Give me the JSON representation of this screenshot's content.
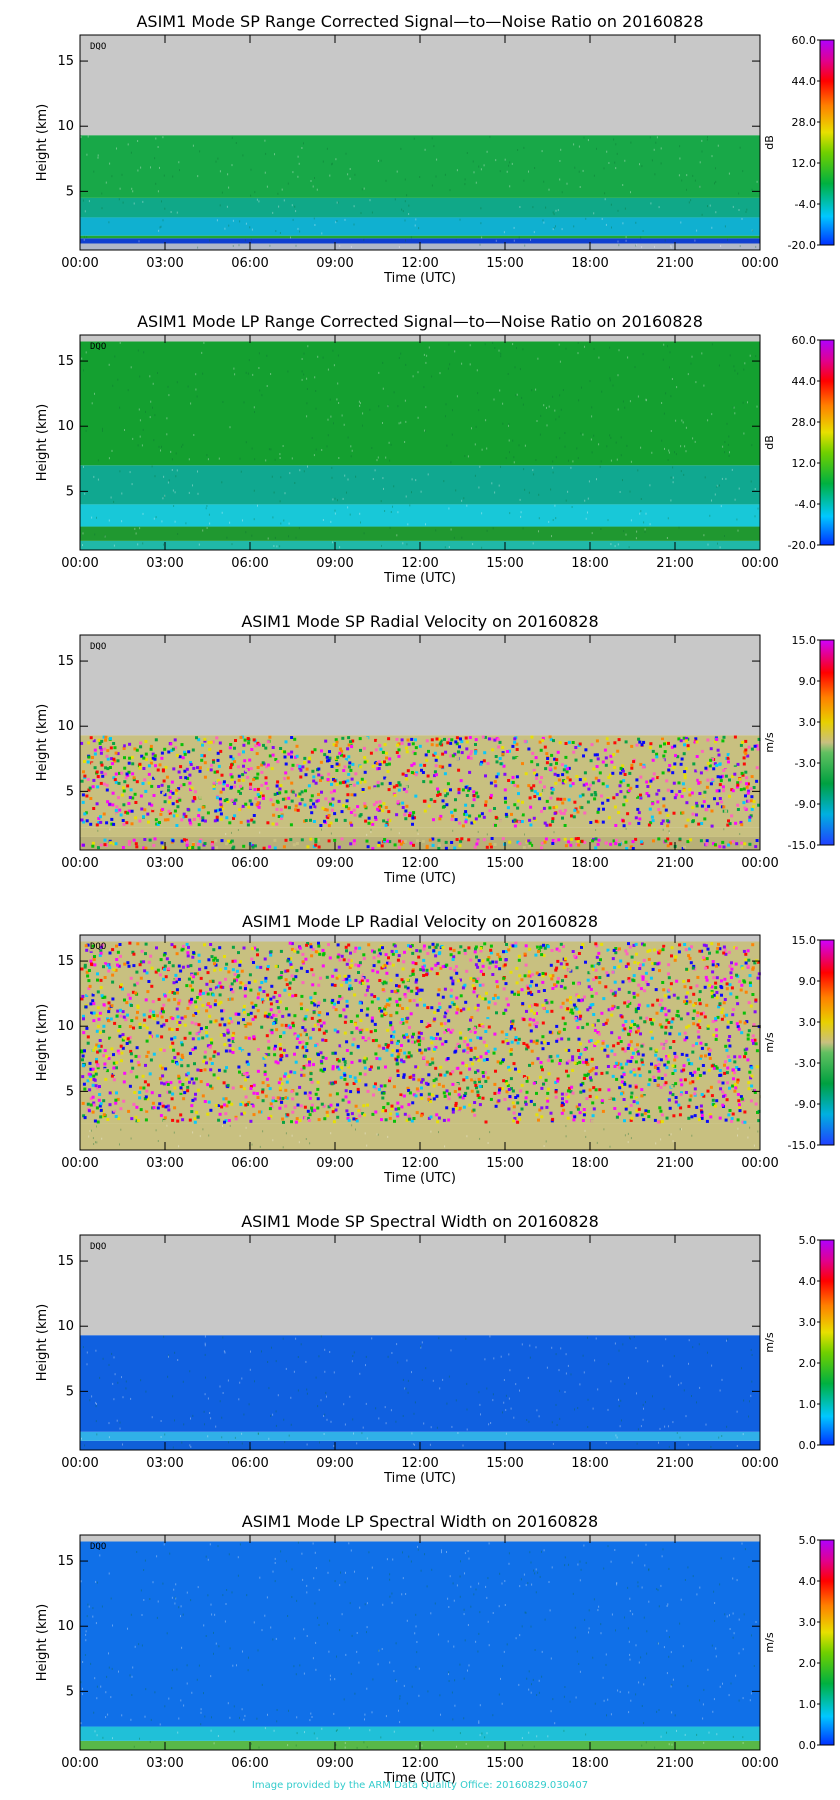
{
  "credit": "Image provided by the ARM Data Quality Office: 20160829.030407",
  "chart_data": [
    {
      "type": "heatmap",
      "title": "ASIM1 Mode SP Range Corrected Signal—to—Noise Ratio on 20160828",
      "xlabel": "Time (UTC)",
      "ylabel": "Height (km)",
      "xticks": [
        "00:00",
        "03:00",
        "06:00",
        "09:00",
        "12:00",
        "15:00",
        "18:00",
        "21:00",
        "00:00"
      ],
      "yticks": [
        5,
        10,
        15
      ],
      "ylim": [
        0.5,
        17
      ],
      "tag": "DQO",
      "no_data_above_km": 9.3,
      "colorbar": {
        "label": "dB",
        "ticks": [
          "60.0",
          "44.0",
          "28.0",
          "12.0",
          "-4.0",
          "-20.0"
        ],
        "min": -20,
        "max": 60
      },
      "colors": {
        "no_data": "#c8c8c8"
      },
      "bands": [
        {
          "from_km": 0.5,
          "to_km": 1.0,
          "color": "#b0b8c8"
        },
        {
          "from_km": 1.0,
          "to_km": 1.4,
          "color": "#1040d0"
        },
        {
          "from_km": 1.4,
          "to_km": 1.6,
          "color": "#20a830"
        },
        {
          "from_km": 1.6,
          "to_km": 3.0,
          "color": "#10b0d0"
        },
        {
          "from_km": 3.0,
          "to_km": 4.5,
          "color": "#10a888"
        },
        {
          "from_km": 4.5,
          "to_km": 9.3,
          "color": "#18a848"
        }
      ]
    },
    {
      "type": "heatmap",
      "title": "ASIM1 Mode LP Range Corrected Signal—to—Noise Ratio on 20160828",
      "xlabel": "Time (UTC)",
      "ylabel": "Height (km)",
      "xticks": [
        "00:00",
        "03:00",
        "06:00",
        "09:00",
        "12:00",
        "15:00",
        "18:00",
        "21:00",
        "00:00"
      ],
      "yticks": [
        5,
        10,
        15
      ],
      "ylim": [
        0.5,
        17
      ],
      "tag": "DQO",
      "no_data_above_km": 16.5,
      "colorbar": {
        "label": "dB",
        "ticks": [
          "60.0",
          "44.0",
          "28.0",
          "12.0",
          "-4.0",
          "-20.0"
        ],
        "min": -20,
        "max": 60
      },
      "colors": {
        "no_data": "#c8c8c8"
      },
      "bands": [
        {
          "from_km": 0.5,
          "to_km": 1.2,
          "color": "#20b8a8"
        },
        {
          "from_km": 1.2,
          "to_km": 2.3,
          "color": "#209830"
        },
        {
          "from_km": 2.3,
          "to_km": 4.0,
          "color": "#18c8d8"
        },
        {
          "from_km": 4.0,
          "to_km": 7.0,
          "color": "#10a890"
        },
        {
          "from_km": 7.0,
          "to_km": 16.5,
          "color": "#14a030"
        }
      ]
    },
    {
      "type": "heatmap",
      "title": "ASIM1 Mode SP Radial Velocity  on 20160828",
      "xlabel": "Time (UTC)",
      "ylabel": "Height (km)",
      "xticks": [
        "00:00",
        "03:00",
        "06:00",
        "09:00",
        "12:00",
        "15:00",
        "18:00",
        "21:00",
        "00:00"
      ],
      "yticks": [
        5,
        10,
        15
      ],
      "ylim": [
        0.5,
        17
      ],
      "tag": "DQO",
      "no_data_above_km": 9.3,
      "colorbar": {
        "label": "m/s",
        "ticks": [
          "15.0",
          "9.0",
          "3.0",
          "-3.0",
          "-9.0",
          "-15.0"
        ],
        "min": -15,
        "max": 15
      },
      "colors": {
        "no_data": "#c8c8c8"
      },
      "bands": [
        {
          "from_km": 0.5,
          "to_km": 1.5,
          "color": "#b8b078",
          "noise": true
        },
        {
          "from_km": 1.5,
          "to_km": 2.2,
          "color": "#c8c080"
        },
        {
          "from_km": 2.2,
          "to_km": 9.3,
          "color": "#c8c080",
          "noise": true
        }
      ]
    },
    {
      "type": "heatmap",
      "title": "ASIM1 Mode LP Radial Velocity  on 20160828",
      "xlabel": "Time (UTC)",
      "ylabel": "Height (km)",
      "xticks": [
        "00:00",
        "03:00",
        "06:00",
        "09:00",
        "12:00",
        "15:00",
        "18:00",
        "21:00",
        "00:00"
      ],
      "yticks": [
        5,
        10,
        15
      ],
      "ylim": [
        0.5,
        17
      ],
      "tag": "DQO",
      "no_data_above_km": 16.5,
      "colorbar": {
        "label": "m/s",
        "ticks": [
          "15.0",
          "9.0",
          "3.0",
          "-3.0",
          "-9.0",
          "-15.0"
        ],
        "min": -15,
        "max": 15
      },
      "colors": {
        "no_data": "#c8c8c8"
      },
      "bands": [
        {
          "from_km": 0.5,
          "to_km": 2.5,
          "color": "#c8c080"
        },
        {
          "from_km": 2.5,
          "to_km": 16.5,
          "color": "#c8c080",
          "noise": true
        }
      ]
    },
    {
      "type": "heatmap",
      "title": "ASIM1 Mode SP Spectral Width  on 20160828",
      "xlabel": "Time (UTC)",
      "ylabel": "Height (km)",
      "xticks": [
        "00:00",
        "03:00",
        "06:00",
        "09:00",
        "12:00",
        "15:00",
        "18:00",
        "21:00",
        "00:00"
      ],
      "yticks": [
        5,
        10,
        15
      ],
      "ylim": [
        0.5,
        17
      ],
      "tag": "DQO",
      "no_data_above_km": 9.3,
      "colorbar": {
        "label": "m/s",
        "ticks": [
          "5.0",
          "4.0",
          "3.0",
          "2.0",
          "1.0",
          "0.0"
        ],
        "min": 0,
        "max": 5
      },
      "colors": {
        "no_data": "#c8c8c8"
      },
      "bands": [
        {
          "from_km": 0.5,
          "to_km": 1.2,
          "color": "#1060d8"
        },
        {
          "from_km": 1.2,
          "to_km": 1.9,
          "color": "#30b0e8"
        },
        {
          "from_km": 1.9,
          "to_km": 9.3,
          "color": "#1060e0"
        }
      ]
    },
    {
      "type": "heatmap",
      "title": "ASIM1 Mode LP Spectral Width  on 20160828",
      "xlabel": "Time (UTC)",
      "ylabel": "Height (km)",
      "xticks": [
        "00:00",
        "03:00",
        "06:00",
        "09:00",
        "12:00",
        "15:00",
        "18:00",
        "21:00",
        "00:00"
      ],
      "yticks": [
        5,
        10,
        15
      ],
      "ylim": [
        0.5,
        17
      ],
      "tag": "DQO",
      "no_data_above_km": 16.5,
      "colorbar": {
        "label": "m/s",
        "ticks": [
          "5.0",
          "4.0",
          "3.0",
          "2.0",
          "1.0",
          "0.0"
        ],
        "min": 0,
        "max": 5
      },
      "colors": {
        "no_data": "#c8c8c8"
      },
      "bands": [
        {
          "from_km": 0.5,
          "to_km": 1.2,
          "color": "#58b848"
        },
        {
          "from_km": 1.2,
          "to_km": 2.3,
          "color": "#20c0d8"
        },
        {
          "from_km": 2.3,
          "to_km": 16.5,
          "color": "#1070e8"
        }
      ]
    }
  ]
}
